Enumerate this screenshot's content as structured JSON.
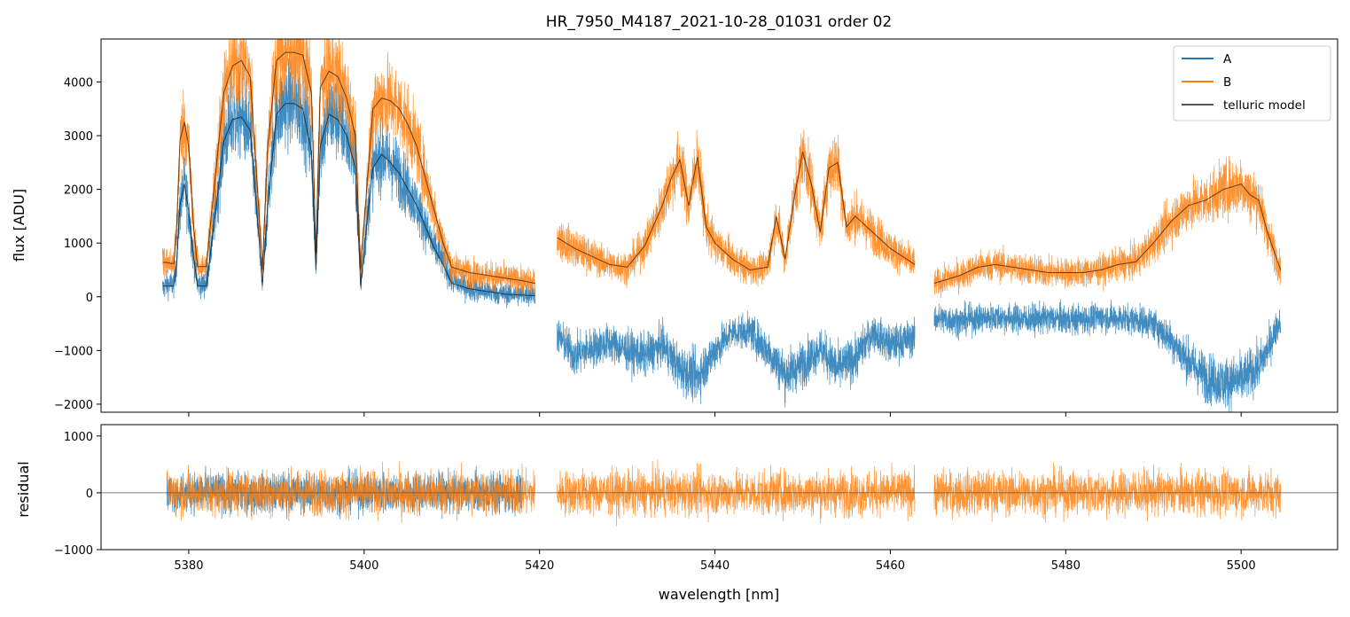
{
  "chart_data": [
    {
      "type": "line",
      "panel": "main",
      "title": "HR_7950_M4187_2021-10-28_01031  order 02",
      "xlabel": "",
      "ylabel": "flux [ADU]",
      "xlim": [
        5370,
        5511
      ],
      "ylim": [
        -2150,
        4800
      ],
      "xticks": [
        5380,
        5400,
        5420,
        5440,
        5460,
        5480,
        5500
      ],
      "yticks": [
        -2000,
        -1000,
        0,
        1000,
        2000,
        3000,
        4000
      ],
      "ytick_labels": [
        "−2000",
        "−1000",
        "0",
        "1000",
        "2000",
        "3000",
        "4000"
      ],
      "legend": {
        "position": "top-right",
        "entries": [
          "A",
          "B",
          "telluric model"
        ]
      },
      "series": [
        {
          "name": "A",
          "color": "#1f77b4",
          "segments": [
            {
              "x": [
                5377.0,
                5377.5,
                5378.0,
                5378.3,
                5378.6,
                5379.0,
                5379.5,
                5380.0,
                5380.5,
                5381.0,
                5382.0,
                5383.0,
                5384.0,
                5385.0,
                5386.0,
                5387.0,
                5388.0,
                5388.4,
                5389.0,
                5390.0,
                5391.0,
                5392.0,
                5393.0,
                5394.0,
                5394.5,
                5395.0,
                5396.0,
                5397.0,
                5398.0,
                5399.0,
                5399.6,
                5400.0,
                5401.0,
                5402.0,
                5403.0,
                5404.0,
                5405.0,
                5406.0,
                5407.0,
                5408.0,
                5409.0,
                5410.0,
                5412.0,
                5414.0,
                5416.0,
                5418.0,
                5419.5
              ],
              "y": [
                150,
                230,
                230,
                230,
                600,
                1700,
                2100,
                1600,
                800,
                230,
                230,
                1500,
                2900,
                3300,
                3350,
                3100,
                1100,
                200,
                1700,
                3400,
                3600,
                3600,
                3500,
                2700,
                500,
                2800,
                3400,
                3300,
                3000,
                2400,
                200,
                900,
                2400,
                2650,
                2500,
                2300,
                2000,
                1700,
                1300,
                900,
                700,
                300,
                150,
                100,
                50,
                50,
                50
              ]
            },
            {
              "x": [
                5422.0,
                5424.0,
                5426.0,
                5428.0,
                5430.0,
                5432.0,
                5434.0,
                5436.0,
                5438.0,
                5440.0,
                5442.0,
                5444.0,
                5446.0,
                5448.0,
                5450.0,
                5452.0,
                5454.0,
                5456.0,
                5458.0,
                5460.0,
                5462.8
              ],
              "y": [
                -700,
                -1100,
                -950,
                -850,
                -1000,
                -1100,
                -900,
                -1350,
                -1500,
                -1000,
                -650,
                -650,
                -1000,
                -1450,
                -1250,
                -950,
                -1350,
                -1150,
                -650,
                -900,
                -750
              ]
            },
            {
              "x": [
                5465.0,
                5468.0,
                5470.0,
                5472.0,
                5474.0,
                5476.0,
                5478.0,
                5480.0,
                5482.0,
                5484.0,
                5486.0,
                5488.0,
                5490.0,
                5492.0,
                5494.0,
                5496.0,
                5498.0,
                5500.0,
                5502.0,
                5503.0,
                5504.5
              ],
              "y": [
                -400,
                -450,
                -400,
                -380,
                -400,
                -420,
                -400,
                -420,
                -420,
                -380,
                -400,
                -420,
                -500,
                -800,
                -1200,
                -1500,
                -1600,
                -1550,
                -1300,
                -1000,
                -400
              ]
            }
          ]
        },
        {
          "name": "B",
          "color": "#ff7f0e",
          "segments": [
            {
              "x": [
                5377.0,
                5377.5,
                5378.0,
                5378.3,
                5378.6,
                5379.0,
                5379.5,
                5380.0,
                5380.5,
                5381.0,
                5382.0,
                5383.0,
                5384.0,
                5385.0,
                5386.0,
                5387.0,
                5388.0,
                5388.4,
                5389.0,
                5390.0,
                5391.0,
                5392.0,
                5393.0,
                5394.0,
                5394.5,
                5395.0,
                5396.0,
                5397.0,
                5398.0,
                5399.0,
                5399.6,
                5400.0,
                5401.0,
                5402.0,
                5403.0,
                5404.0,
                5405.0,
                5406.0,
                5407.0,
                5408.0,
                5409.0,
                5410.0,
                5412.0,
                5414.0,
                5416.0,
                5418.0,
                5419.5
              ],
              "y": [
                650,
                640,
                620,
                620,
                1200,
                2900,
                3250,
                2800,
                1400,
                560,
                560,
                2200,
                3800,
                4300,
                4400,
                4100,
                1600,
                500,
                2800,
                4400,
                4550,
                4550,
                4500,
                3800,
                800,
                3900,
                4200,
                4100,
                3700,
                3000,
                500,
                1400,
                3500,
                3700,
                3650,
                3500,
                3200,
                2800,
                2200,
                1600,
                1000,
                550,
                450,
                400,
                350,
                300,
                250
              ]
            },
            {
              "x": [
                5422.0,
                5424.0,
                5426.0,
                5428.0,
                5430.0,
                5432.0,
                5434.0,
                5435.0,
                5436.0,
                5437.0,
                5438.0,
                5439.0,
                5440.0,
                5442.0,
                5444.0,
                5446.0,
                5447.0,
                5448.0,
                5449.0,
                5450.0,
                5451.0,
                5452.0,
                5453.0,
                5454.0,
                5455.0,
                5456.0,
                5458.0,
                5460.0,
                5462.8
              ],
              "y": [
                1100,
                900,
                750,
                600,
                550,
                950,
                1700,
                2200,
                2550,
                1700,
                2600,
                1300,
                1000,
                700,
                500,
                550,
                1500,
                700,
                1800,
                2700,
                2100,
                1200,
                2400,
                2500,
                1300,
                1500,
                1200,
                900,
                600
              ]
            },
            {
              "x": [
                5465.0,
                5468.0,
                5470.0,
                5472.0,
                5474.0,
                5476.0,
                5478.0,
                5480.0,
                5482.0,
                5484.0,
                5486.0,
                5488.0,
                5490.0,
                5492.0,
                5494.0,
                5496.0,
                5498.0,
                5500.0,
                5501.0,
                5502.0,
                5503.0,
                5504.5
              ],
              "y": [
                250,
                400,
                550,
                600,
                550,
                500,
                450,
                450,
                450,
                500,
                600,
                650,
                1000,
                1400,
                1700,
                1800,
                2000,
                2100,
                1900,
                1800,
                1200,
                500
              ]
            }
          ]
        },
        {
          "name": "telluric model",
          "color": "#555555",
          "segments": [
            {
              "x": [
                5377.0,
                5377.5,
                5378.0,
                5378.3,
                5378.6,
                5379.0,
                5379.5,
                5380.0,
                5380.5,
                5381.0,
                5382.0,
                5383.0,
                5384.0,
                5385.0,
                5386.0,
                5387.0,
                5388.0,
                5388.4,
                5389.0,
                5390.0,
                5391.0,
                5392.0,
                5393.0,
                5394.0,
                5394.5,
                5395.0,
                5396.0,
                5397.0,
                5398.0,
                5399.0,
                5399.6,
                5400.0,
                5401.0,
                5402.0,
                5403.0,
                5404.0,
                5405.0,
                5406.0,
                5407.0,
                5408.0,
                5409.0,
                5410.0,
                5412.0,
                5414.0,
                5416.0,
                5418.0,
                5419.5
              ],
              "y": [
                200,
                200,
                200,
                200,
                600,
                1700,
                2100,
                1600,
                800,
                200,
                200,
                1500,
                2900,
                3300,
                3350,
                3100,
                1100,
                200,
                1700,
                3400,
                3600,
                3600,
                3500,
                2700,
                500,
                2800,
                3400,
                3300,
                3000,
                2400,
                200,
                900,
                2400,
                2650,
                2500,
                2300,
                2000,
                1700,
                1300,
                900,
                600,
                250,
                150,
                100,
                50,
                30,
                20
              ]
            },
            {
              "x": [
                5377.0,
                5377.5,
                5378.0,
                5378.3,
                5378.6,
                5379.0,
                5379.5,
                5380.0,
                5380.5,
                5381.0,
                5382.0,
                5383.0,
                5384.0,
                5385.0,
                5386.0,
                5387.0,
                5388.0,
                5388.4,
                5389.0,
                5390.0,
                5391.0,
                5392.0,
                5393.0,
                5394.0,
                5394.5,
                5395.0,
                5396.0,
                5397.0,
                5398.0,
                5399.0,
                5399.6,
                5400.0,
                5401.0,
                5402.0,
                5403.0,
                5404.0,
                5405.0,
                5406.0,
                5407.0,
                5408.0,
                5409.0,
                5410.0,
                5412.0,
                5414.0,
                5416.0,
                5418.0,
                5419.5
              ],
              "y": [
                640,
                640,
                620,
                620,
                1200,
                2900,
                3250,
                2800,
                1400,
                560,
                560,
                2200,
                3800,
                4300,
                4400,
                4100,
                1600,
                500,
                2800,
                4400,
                4550,
                4550,
                4500,
                3800,
                800,
                3900,
                4200,
                4100,
                3700,
                3000,
                500,
                1400,
                3500,
                3700,
                3650,
                3500,
                3200,
                2800,
                2200,
                1600,
                1000,
                550,
                450,
                400,
                350,
                300,
                250
              ]
            },
            {
              "x": [
                5422.0,
                5424.0,
                5426.0,
                5428.0,
                5430.0,
                5432.0,
                5434.0,
                5435.0,
                5436.0,
                5437.0,
                5438.0,
                5439.0,
                5440.0,
                5442.0,
                5444.0,
                5446.0,
                5447.0,
                5448.0,
                5449.0,
                5450.0,
                5451.0,
                5452.0,
                5453.0,
                5454.0,
                5455.0,
                5456.0,
                5458.0,
                5460.0,
                5462.8
              ],
              "y": [
                1100,
                900,
                750,
                600,
                550,
                950,
                1700,
                2200,
                2550,
                1700,
                2600,
                1300,
                1000,
                700,
                500,
                550,
                1500,
                700,
                1800,
                2700,
                2100,
                1200,
                2400,
                2500,
                1300,
                1500,
                1200,
                900,
                600
              ]
            },
            {
              "x": [
                5465.0,
                5468.0,
                5470.0,
                5472.0,
                5474.0,
                5476.0,
                5478.0,
                5480.0,
                5482.0,
                5484.0,
                5486.0,
                5488.0,
                5490.0,
                5492.0,
                5494.0,
                5496.0,
                5498.0,
                5500.0,
                5501.0,
                5502.0,
                5503.0,
                5504.5
              ],
              "y": [
                250,
                400,
                550,
                600,
                550,
                500,
                450,
                450,
                450,
                500,
                600,
                650,
                1000,
                1400,
                1700,
                1800,
                2000,
                2100,
                1900,
                1800,
                1200,
                500
              ]
            }
          ]
        }
      ]
    },
    {
      "type": "line",
      "panel": "residual",
      "xlabel": "wavelength [nm]",
      "ylabel": "residual",
      "xlim": [
        5370,
        5511
      ],
      "ylim": [
        -1000,
        1200
      ],
      "xticks": [
        5380,
        5400,
        5420,
        5440,
        5460,
        5480,
        5500
      ],
      "xtick_labels": [
        "5380",
        "5400",
        "5420",
        "5440",
        "5460",
        "5480",
        "5500"
      ],
      "yticks": [
        -1000,
        0,
        1000
      ],
      "ytick_labels": [
        "−1000",
        "0",
        "1000"
      ],
      "zero_line": true,
      "series": [
        {
          "name": "A",
          "color": "#1f77b4",
          "noise_amplitude": 450,
          "ranges": [
            [
              5377.5,
              5418.0
            ]
          ]
        },
        {
          "name": "B",
          "color": "#ff7f0e",
          "noise_amplitude": 500,
          "ranges": [
            [
              5377.5,
              5419.5
            ],
            [
              5422.0,
              5462.8
            ],
            [
              5465.0,
              5504.5
            ]
          ]
        }
      ]
    }
  ]
}
